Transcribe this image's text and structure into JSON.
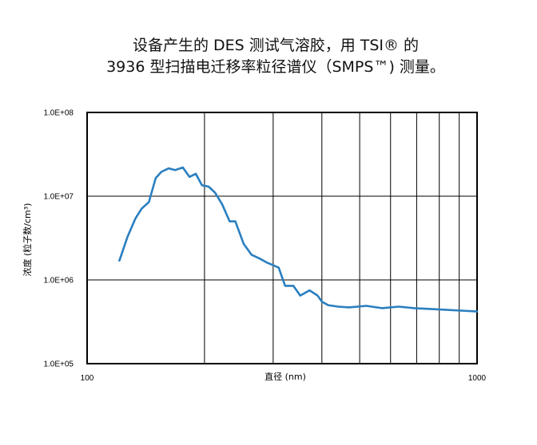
{
  "chart_data": {
    "type": "line",
    "title_line1": "设备产生的 DES 测试气溶胶，用 TSI® 的",
    "title_line2": "3936 型扫描电迁移率粒径谱仪（SMPS™) 测量。",
    "xlabel": "直径 (nm)",
    "ylabel": "浓度 (粒子数/cm³)",
    "x_scale": "log",
    "y_scale": "log",
    "xlim": [
      100,
      1000
    ],
    "ylim": [
      100000,
      100000000
    ],
    "x_tick_labels": [
      "100",
      "1000"
    ],
    "y_tick_values": [
      100000,
      1000000,
      10000000,
      100000000
    ],
    "y_tick_labels": [
      "1.0E+05",
      "1.0E+06",
      "1.0E+07",
      "1.0E+08"
    ],
    "x_gridlines": [
      200,
      300,
      400,
      500,
      600,
      700,
      800,
      900
    ],
    "grid": true,
    "line_color": "#2a7fc0",
    "series": [
      {
        "x": [
          121,
          127,
          133,
          138,
          144,
          150,
          155,
          162,
          168,
          176,
          183,
          190,
          197,
          205,
          213,
          222,
          232,
          240,
          252,
          264,
          277,
          290,
          300,
          310,
          322,
          338,
          352,
          372,
          390,
          400,
          415,
          440,
          470,
          520,
          570,
          630,
          690,
          760,
          830,
          910,
          1000
        ],
        "y": [
          1700000,
          3300000,
          5400000,
          7100000,
          8500000,
          16500000,
          19500000,
          21500000,
          20500000,
          22000000,
          17000000,
          18500000,
          13500000,
          13000000,
          11000000,
          8000000,
          5000000,
          5000000,
          2700000,
          2000000,
          1800000,
          1600000,
          1500000,
          1400000,
          850000,
          850000,
          650000,
          750000,
          650000,
          550000,
          500000,
          480000,
          470000,
          490000,
          460000,
          480000,
          460000,
          450000,
          440000,
          430000,
          420000
        ]
      }
    ]
  }
}
